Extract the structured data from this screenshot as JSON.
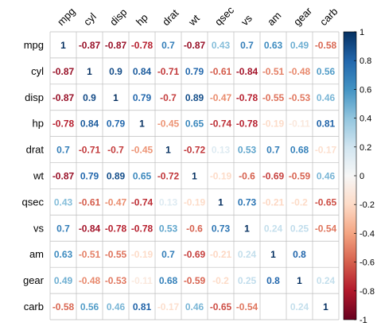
{
  "chart_data": {
    "type": "heatmap",
    "variables": [
      "mpg",
      "cyl",
      "disp",
      "hp",
      "drat",
      "wt",
      "qsec",
      "vs",
      "am",
      "gear",
      "carb"
    ],
    "values": [
      [
        "1",
        "-0.87",
        "-0.87",
        "-0.78",
        "0.7",
        "-0.87",
        "0.43",
        "0.7",
        "0.63",
        "0.49",
        "-0.58"
      ],
      [
        "-0.87",
        "1",
        "0.9",
        "0.84",
        "-0.71",
        "0.79",
        "-0.61",
        "-0.84",
        "-0.51",
        "-0.48",
        "0.56"
      ],
      [
        "-0.87",
        "0.9",
        "1",
        "0.79",
        "-0.7",
        "0.89",
        "-0.47",
        "-0.78",
        "-0.55",
        "-0.53",
        "0.46"
      ],
      [
        "-0.78",
        "0.84",
        "0.79",
        "1",
        "-0.45",
        "0.65",
        "-0.74",
        "-0.78",
        "-0.19",
        "-0.11",
        "0.81"
      ],
      [
        "0.7",
        "-0.71",
        "-0.7",
        "-0.45",
        "1",
        "-0.72",
        "0.13",
        "0.53",
        "0.7",
        "0.68",
        "-0.17"
      ],
      [
        "-0.87",
        "0.79",
        "0.89",
        "0.65",
        "-0.72",
        "1",
        "-0.19",
        "-0.6",
        "-0.69",
        "-0.59",
        "0.46"
      ],
      [
        "0.43",
        "-0.61",
        "-0.47",
        "-0.74",
        "0.13",
        "-0.19",
        "1",
        "0.73",
        "-0.21",
        "-0.2",
        "-0.65"
      ],
      [
        "0.7",
        "-0.84",
        "-0.78",
        "-0.78",
        "0.53",
        "-0.6",
        "0.73",
        "1",
        "0.24",
        "0.25",
        "-0.54"
      ],
      [
        "0.63",
        "-0.51",
        "-0.55",
        "-0.19",
        "0.7",
        "-0.69",
        "-0.21",
        "0.24",
        "1",
        "0.8",
        ""
      ],
      [
        "0.49",
        "-0.48",
        "-0.53",
        "-0.11",
        "0.68",
        "-0.59",
        "-0.2",
        "0.25",
        "0.8",
        "1",
        "0.24"
      ],
      [
        "-0.58",
        "0.56",
        "0.46",
        "0.81",
        "-0.17",
        "0.46",
        "-0.65",
        "-0.54",
        "",
        "0.24",
        "1"
      ]
    ],
    "colorbar": {
      "range": [
        -1,
        1
      ],
      "ticks": [
        "1",
        "0.8",
        "0.6",
        "0.4",
        "0.2",
        "0",
        "-0.2",
        "-0.4",
        "-0.6",
        "-0.8",
        "-1"
      ]
    },
    "colors": {
      "negative_end": "#67001f",
      "mid": "#f7f7f7",
      "positive_end": "#053061",
      "grid": "#bdbdbd"
    }
  }
}
